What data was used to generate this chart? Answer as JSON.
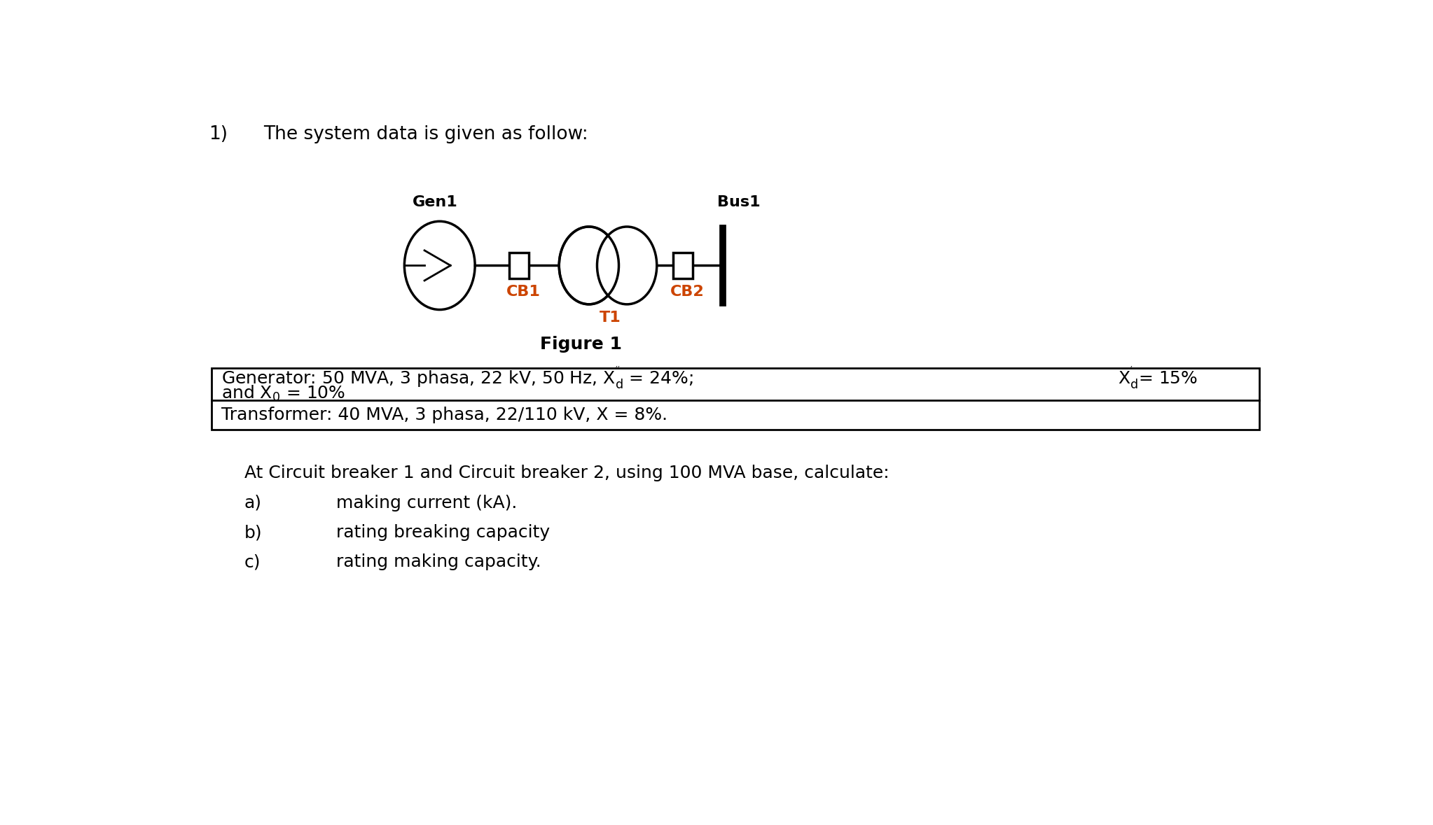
{
  "title_number": "1)",
  "title_text": "The system data is given as follow:",
  "figure_caption": "Figure 1",
  "gen_label": "Gen1",
  "bus_label": "Bus1",
  "cb1_label": "CB1",
  "cb2_label": "CB2",
  "t1_label": "T1",
  "table_row1": "Generator: 50 MVA, 3 phasa, 22 kV, 50 Hz, $X_d^{''}$ = 24%;",
  "table_row1_right": "$X_d^{'}$= 15%",
  "table_row2": "and $X_0$ = 10%",
  "table_row3": "Transformer: 40 MVA, 3 phasa, 22/110 kV, X = 8%.",
  "question_text": "At Circuit breaker 1 and Circuit breaker 2, using 100 MVA base, calculate:",
  "items": [
    "making current (kA).",
    "rating breaking capacity",
    "rating making capacity."
  ],
  "item_labels": [
    "a)",
    "b)",
    "c)"
  ],
  "bg_color": "#ffffff",
  "text_color": "#000000",
  "label_color_cb": "#cc4400",
  "circuit_line_color": "#000000",
  "font_size_title": 19,
  "font_size_diagram": 16,
  "font_size_table": 18,
  "font_size_question": 18
}
